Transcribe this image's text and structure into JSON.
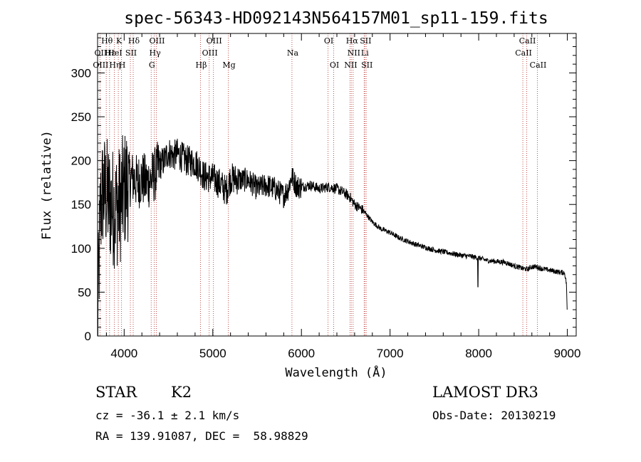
{
  "chart_data": {
    "type": "line",
    "title": "spec-56343-HD092143N564157M01_sp11-159.fits",
    "xlabel": "Wavelength (Å)",
    "ylabel": "Flux (relative)",
    "xlim": [
      3700,
      9100
    ],
    "ylim": [
      0,
      345
    ],
    "xticks": [
      4000,
      5000,
      6000,
      7000,
      8000,
      9000
    ],
    "yticks": [
      0,
      50,
      100,
      150,
      200,
      250,
      300
    ],
    "xtick_labels": [
      "4000",
      "5000",
      "6000",
      "7000",
      "8000",
      "9000"
    ],
    "ytick_labels": [
      "0",
      "50",
      "100",
      "150",
      "200",
      "250",
      "300"
    ],
    "series": [
      {
        "name": "flux",
        "x": [
          3700,
          3730,
          3760,
          3800,
          3850,
          3900,
          3950,
          4000,
          4050,
          4100,
          4150,
          4200,
          4250,
          4300,
          4350,
          4400,
          4450,
          4500,
          4550,
          4600,
          4700,
          4800,
          4850,
          4900,
          5000,
          5100,
          5150,
          5200,
          5300,
          5400,
          5500,
          5600,
          5700,
          5800,
          5850,
          5890,
          5950,
          6000,
          6100,
          6200,
          6300,
          6400,
          6500,
          6550,
          6600,
          6700,
          6800,
          6900,
          7000,
          7100,
          7200,
          7300,
          7400,
          7500,
          7600,
          7700,
          7800,
          7900,
          8000,
          8100,
          8200,
          8300,
          8400,
          8500,
          8550,
          8600,
          8650,
          8700,
          8800,
          8900,
          8970,
          8990,
          9000
        ],
        "y": [
          10,
          140,
          165,
          160,
          150,
          145,
          150,
          165,
          178,
          180,
          175,
          180,
          175,
          178,
          185,
          195,
          200,
          210,
          205,
          208,
          200,
          198,
          192,
          182,
          180,
          172,
          165,
          180,
          178,
          178,
          168,
          172,
          168,
          160,
          168,
          182,
          170,
          170,
          172,
          168,
          170,
          168,
          162,
          158,
          150,
          143,
          130,
          122,
          118,
          112,
          108,
          104,
          101,
          98,
          96,
          94,
          92,
          91,
          89,
          86,
          85,
          84,
          80,
          77,
          76,
          79,
          79,
          77,
          75,
          73,
          72,
          60,
          20
        ]
      }
    ],
    "features": [
      {
        "name": "Hα",
        "x": 6563
      },
      {
        "name": "Hβ",
        "x": 4861
      },
      {
        "name": "Hγ",
        "x": 4340
      },
      {
        "name": "Hδ",
        "x": 4102
      },
      {
        "name": "H",
        "x": 3970
      },
      {
        "name": "K",
        "x": 3934
      },
      {
        "name": "G",
        "x": 4305
      },
      {
        "name": "Mg",
        "x": 5175
      },
      {
        "name": "Na",
        "x": 5893
      }
    ],
    "line_markers": [
      {
        "label": "Hθ",
        "x": 3798,
        "row": 0
      },
      {
        "label": "OII",
        "x": 3727,
        "row": 1
      },
      {
        "label": "OIII",
        "x": 3727,
        "row": 2
      },
      {
        "label": "Hε",
        "x": 3835,
        "row": 1
      },
      {
        "label": "Hη",
        "x": 3889,
        "row": 2
      },
      {
        "label": "K",
        "x": 3934,
        "row": 0
      },
      {
        "label": "HeI",
        "x": 3889,
        "row": 1
      },
      {
        "label": "H",
        "x": 3970,
        "row": 2
      },
      {
        "label": "Hδ",
        "x": 4102,
        "row": 0
      },
      {
        "label": "SII",
        "x": 4070,
        "row": 1
      },
      {
        "label": "OIII",
        "x": 4363,
        "row": 0
      },
      {
        "label": "Hγ",
        "x": 4340,
        "row": 1
      },
      {
        "label": "G",
        "x": 4305,
        "row": 2
      },
      {
        "label": "Hβ",
        "x": 4861,
        "row": 2
      },
      {
        "label": "OIII",
        "x": 5007,
        "row": 0
      },
      {
        "label": "OIII",
        "x": 4959,
        "row": 1
      },
      {
        "label": "Mg",
        "x": 5175,
        "row": 2
      },
      {
        "label": "Na",
        "x": 5893,
        "row": 1
      },
      {
        "label": "OI",
        "x": 6300,
        "row": 0
      },
      {
        "label": "OI",
        "x": 6364,
        "row": 2
      },
      {
        "label": "Hα",
        "x": 6563,
        "row": 0
      },
      {
        "label": "SII",
        "x": 6716,
        "row": 0
      },
      {
        "label": "NII",
        "x": 6583,
        "row": 1
      },
      {
        "label": "Li",
        "x": 6708,
        "row": 1
      },
      {
        "label": "NII",
        "x": 6548,
        "row": 2
      },
      {
        "label": "SII",
        "x": 6731,
        "row": 2
      },
      {
        "label": "CaII",
        "x": 8542,
        "row": 0
      },
      {
        "label": "CaII",
        "x": 8498,
        "row": 1
      },
      {
        "label": "CaII",
        "x": 8662,
        "row": 2
      }
    ],
    "legend_position": "none",
    "grid": false
  },
  "info": {
    "object_class": "STAR",
    "subclass": "K2",
    "survey": "LAMOST DR3",
    "cz": "cz = -36.1 ± 2.1 km/s",
    "obs_date": "Obs-Date: 20130219",
    "coords": "RA = 139.91087, DEC =  58.98829"
  }
}
